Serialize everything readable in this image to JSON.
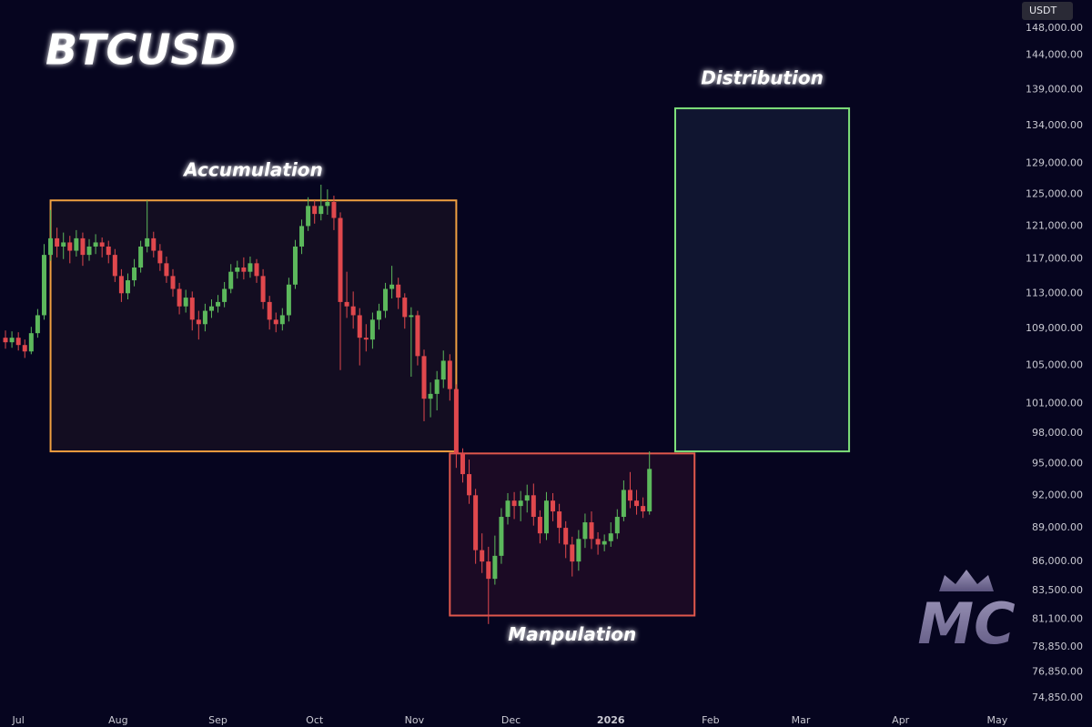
{
  "chart_data": {
    "type": "candlestick",
    "title": "BTCUSD",
    "currency": "USDT",
    "logo": "MC",
    "log_scale": true,
    "up_color": "#5cb85c",
    "down_color": "#e0484d",
    "xlim": [
      -5.7,
      308
    ],
    "ylim": [
      73960,
      152300
    ],
    "xticks": [
      {
        "value": 0,
        "label": "Jul"
      },
      {
        "value": 31,
        "label": "Aug"
      },
      {
        "value": 62,
        "label": "Sep"
      },
      {
        "value": 92,
        "label": "Oct"
      },
      {
        "value": 123,
        "label": "Nov"
      },
      {
        "value": 153,
        "label": "Dec"
      },
      {
        "value": 184,
        "label": "2026"
      },
      {
        "value": 215,
        "label": "Feb"
      },
      {
        "value": 243,
        "label": "Mar"
      },
      {
        "value": 274,
        "label": "Apr"
      },
      {
        "value": 304,
        "label": "May"
      }
    ],
    "yticks": [
      {
        "value": 148000,
        "label": "148,000.00"
      },
      {
        "value": 144000,
        "label": "144,000.00"
      },
      {
        "value": 139000,
        "label": "139,000.00"
      },
      {
        "value": 134000,
        "label": "134,000.00"
      },
      {
        "value": 129000,
        "label": "129,000.00"
      },
      {
        "value": 125000,
        "label": "125,000.00"
      },
      {
        "value": 121000,
        "label": "121,000.00"
      },
      {
        "value": 117000,
        "label": "117,000.00"
      },
      {
        "value": 113000,
        "label": "113,000.00"
      },
      {
        "value": 109000,
        "label": "109,000.00"
      },
      {
        "value": 105000,
        "label": "105,000.00"
      },
      {
        "value": 101000,
        "label": "101,000.00"
      },
      {
        "value": 98000,
        "label": "98,000.00"
      },
      {
        "value": 95000,
        "label": "95,000.00"
      },
      {
        "value": 92000,
        "label": "92,000.00"
      },
      {
        "value": 89000,
        "label": "89,000.00"
      },
      {
        "value": 86000,
        "label": "86,000.00"
      },
      {
        "value": 83500,
        "label": "83,500.00"
      },
      {
        "value": 81100,
        "label": "81,100.00"
      },
      {
        "value": 78850,
        "label": "78,850.00"
      },
      {
        "value": 76850,
        "label": "76,850.00"
      },
      {
        "value": 74850,
        "label": "74,850.00"
      }
    ],
    "zones": [
      {
        "label": "Accumulation",
        "label_position": "top",
        "x": [
          10,
          136
        ],
        "y": [
          96200,
          124200
        ],
        "color": "#f0a040"
      },
      {
        "label": "Manpulation",
        "label_position": "bottom",
        "x": [
          134,
          210
        ],
        "y": [
          81400,
          96000
        ],
        "color": "#e0584c"
      },
      {
        "label": "Distribution",
        "label_position": "top",
        "x": [
          204,
          258
        ],
        "y": [
          96200,
          136400
        ],
        "color": "#7ee07a"
      }
    ],
    "x": [
      -4,
      -2,
      0,
      2,
      4,
      6,
      8,
      10,
      12,
      14,
      16,
      18,
      20,
      22,
      24,
      26,
      28,
      30,
      32,
      34,
      36,
      38,
      40,
      42,
      44,
      46,
      48,
      50,
      52,
      54,
      56,
      58,
      60,
      62,
      64,
      66,
      68,
      70,
      72,
      74,
      76,
      78,
      80,
      82,
      84,
      86,
      88,
      90,
      92,
      94,
      96,
      98,
      100,
      102,
      104,
      106,
      108,
      110,
      112,
      114,
      116,
      118,
      120,
      122,
      124,
      126,
      128,
      130,
      132,
      134,
      136,
      138,
      140,
      142,
      144,
      146,
      148,
      150,
      152,
      154,
      156,
      158,
      160,
      162,
      164,
      166,
      168,
      170,
      172,
      174,
      176,
      178,
      180,
      182,
      184,
      186,
      188,
      190,
      192,
      194,
      196
    ],
    "open": [
      108000,
      107500,
      108000,
      107200,
      106500,
      108500,
      110500,
      117500,
      119500,
      118500,
      119000,
      118000,
      119500,
      117500,
      118500,
      119000,
      118500,
      117500,
      115000,
      113000,
      114500,
      116000,
      118500,
      119500,
      118000,
      116500,
      115000,
      113500,
      111500,
      112500,
      110000,
      109500,
      111000,
      111500,
      112000,
      113500,
      115500,
      116000,
      115500,
      116500,
      115000,
      112000,
      110000,
      109500,
      110500,
      114000,
      118500,
      121000,
      123500,
      122500,
      123500,
      124000,
      122000,
      112000,
      111500,
      110500,
      108000,
      107800,
      110000,
      111000,
      113500,
      114000,
      112500,
      110300,
      110500,
      106000,
      101500,
      102000,
      103500,
      105500,
      102500,
      96000,
      94000,
      92000,
      87000,
      86000,
      84500,
      86500,
      90000,
      91500,
      91000,
      91500,
      92000,
      90000,
      88500,
      91500,
      90500,
      89000,
      87500,
      86000,
      88000,
      89500,
      88000,
      87500,
      87800,
      88500,
      90000,
      92500,
      91500,
      91000,
      90500
    ],
    "high": [
      108800,
      108700,
      108600,
      107800,
      109200,
      111200,
      118800,
      123000,
      120800,
      120200,
      119800,
      120500,
      120200,
      119400,
      120000,
      119600,
      119200,
      118200,
      115800,
      115300,
      117000,
      119200,
      124200,
      120300,
      118800,
      117300,
      115800,
      114200,
      113400,
      113200,
      111000,
      111800,
      112300,
      112800,
      114300,
      116400,
      116800,
      117200,
      117300,
      117000,
      115800,
      112700,
      110800,
      111300,
      114800,
      119300,
      121800,
      124600,
      124200,
      126200,
      125600,
      124800,
      122700,
      115500,
      113200,
      111300,
      109500,
      110800,
      111800,
      114200,
      116200,
      114800,
      113000,
      111400,
      111000,
      106700,
      103200,
      104400,
      106600,
      106200,
      103000,
      96500,
      95400,
      92600,
      88500,
      87300,
      88300,
      90800,
      92200,
      92300,
      92400,
      93000,
      93100,
      90600,
      92300,
      92200,
      91200,
      89600,
      88200,
      88800,
      90300,
      90500,
      88600,
      88400,
      89500,
      90700,
      93400,
      94200,
      92500,
      91800,
      96200
    ],
    "low": [
      106800,
      106900,
      106600,
      105800,
      106200,
      108000,
      110000,
      116800,
      117200,
      117000,
      116500,
      117300,
      116200,
      116800,
      117600,
      117200,
      116500,
      114300,
      112000,
      112300,
      113800,
      115400,
      117800,
      117200,
      115600,
      114200,
      112600,
      110600,
      110800,
      108800,
      107800,
      108700,
      110200,
      110800,
      111400,
      113000,
      114700,
      114600,
      114800,
      114200,
      111200,
      108900,
      108600,
      108800,
      109800,
      113500,
      117600,
      120400,
      121300,
      121700,
      122400,
      120500,
      104500,
      110200,
      109000,
      105000,
      106500,
      106800,
      108900,
      110200,
      112400,
      111200,
      109000,
      103800,
      105000,
      99200,
      99600,
      100300,
      102600,
      101300,
      94600,
      93200,
      91200,
      85800,
      85000,
      80700,
      84000,
      85800,
      89300,
      89800,
      89600,
      90400,
      89200,
      87600,
      87900,
      89600,
      87600,
      86300,
      84700,
      85200,
      87200,
      87100,
      86600,
      86900,
      87300,
      88000,
      89600,
      90800,
      90200,
      89900,
      90200
    ],
    "close": [
      107500,
      108000,
      107200,
      106500,
      108500,
      110500,
      117500,
      119500,
      118500,
      119000,
      118000,
      119500,
      117500,
      118500,
      119000,
      118500,
      117500,
      115000,
      113000,
      114500,
      116000,
      118500,
      119500,
      118000,
      116500,
      115000,
      113500,
      111500,
      112500,
      110000,
      109500,
      111000,
      111500,
      112000,
      113500,
      115500,
      116000,
      115500,
      116500,
      115000,
      112000,
      110000,
      109500,
      110500,
      114000,
      118500,
      121000,
      123500,
      122500,
      123500,
      124000,
      122000,
      112000,
      111500,
      110500,
      108000,
      107800,
      110000,
      111000,
      113500,
      114000,
      112500,
      110300,
      110500,
      106000,
      101500,
      102000,
      103500,
      105500,
      102500,
      96000,
      94000,
      92000,
      87000,
      86000,
      84500,
      86500,
      90000,
      91500,
      91000,
      91500,
      92000,
      90000,
      88500,
      91500,
      90500,
      89000,
      87500,
      86000,
      88000,
      89500,
      88000,
      87500,
      87800,
      88500,
      90000,
      92500,
      91500,
      91000,
      90500,
      94500
    ]
  }
}
